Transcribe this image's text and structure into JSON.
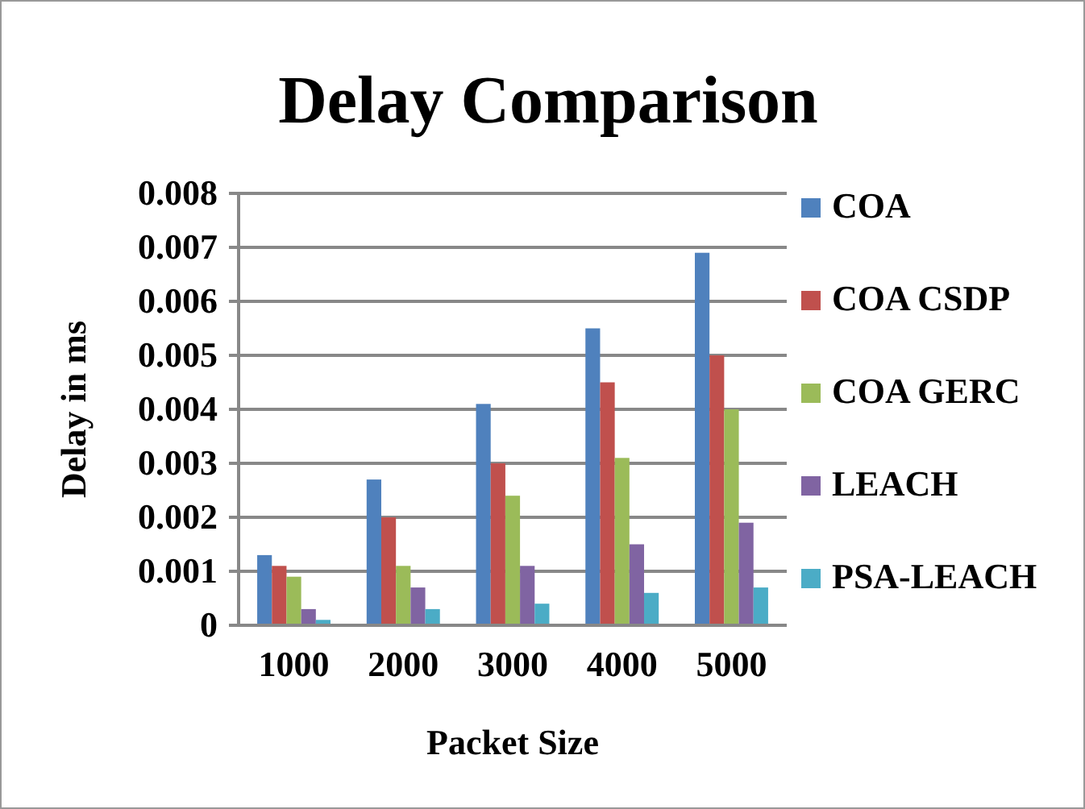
{
  "chart_data": {
    "type": "bar",
    "title": "Delay Comparison",
    "xlabel": "Packet Size",
    "ylabel": "Delay in ms",
    "categories": [
      "1000",
      "2000",
      "3000",
      "4000",
      "5000"
    ],
    "series": [
      {
        "name": "COA",
        "color": "#4f81bd",
        "values": [
          0.0013,
          0.0027,
          0.0041,
          0.0055,
          0.0069
        ]
      },
      {
        "name": "COA CSDP",
        "color": "#c0504d",
        "values": [
          0.0011,
          0.002,
          0.003,
          0.0045,
          0.005
        ]
      },
      {
        "name": "COA GERC",
        "color": "#9bbb59",
        "values": [
          0.0009,
          0.0011,
          0.0024,
          0.0031,
          0.004
        ]
      },
      {
        "name": "LEACH",
        "color": "#8064a2",
        "values": [
          0.0003,
          0.0007,
          0.0011,
          0.0015,
          0.0019
        ]
      },
      {
        "name": "PSA-LEACH",
        "color": "#4bacc6",
        "values": [
          0.0001,
          0.0003,
          0.0004,
          0.0006,
          0.0007
        ]
      }
    ],
    "ylim": [
      0,
      0.008
    ],
    "yticks": [
      0,
      0.001,
      0.002,
      0.003,
      0.004,
      0.005,
      0.006,
      0.007,
      0.008
    ],
    "grid": "y",
    "legend": "right"
  }
}
